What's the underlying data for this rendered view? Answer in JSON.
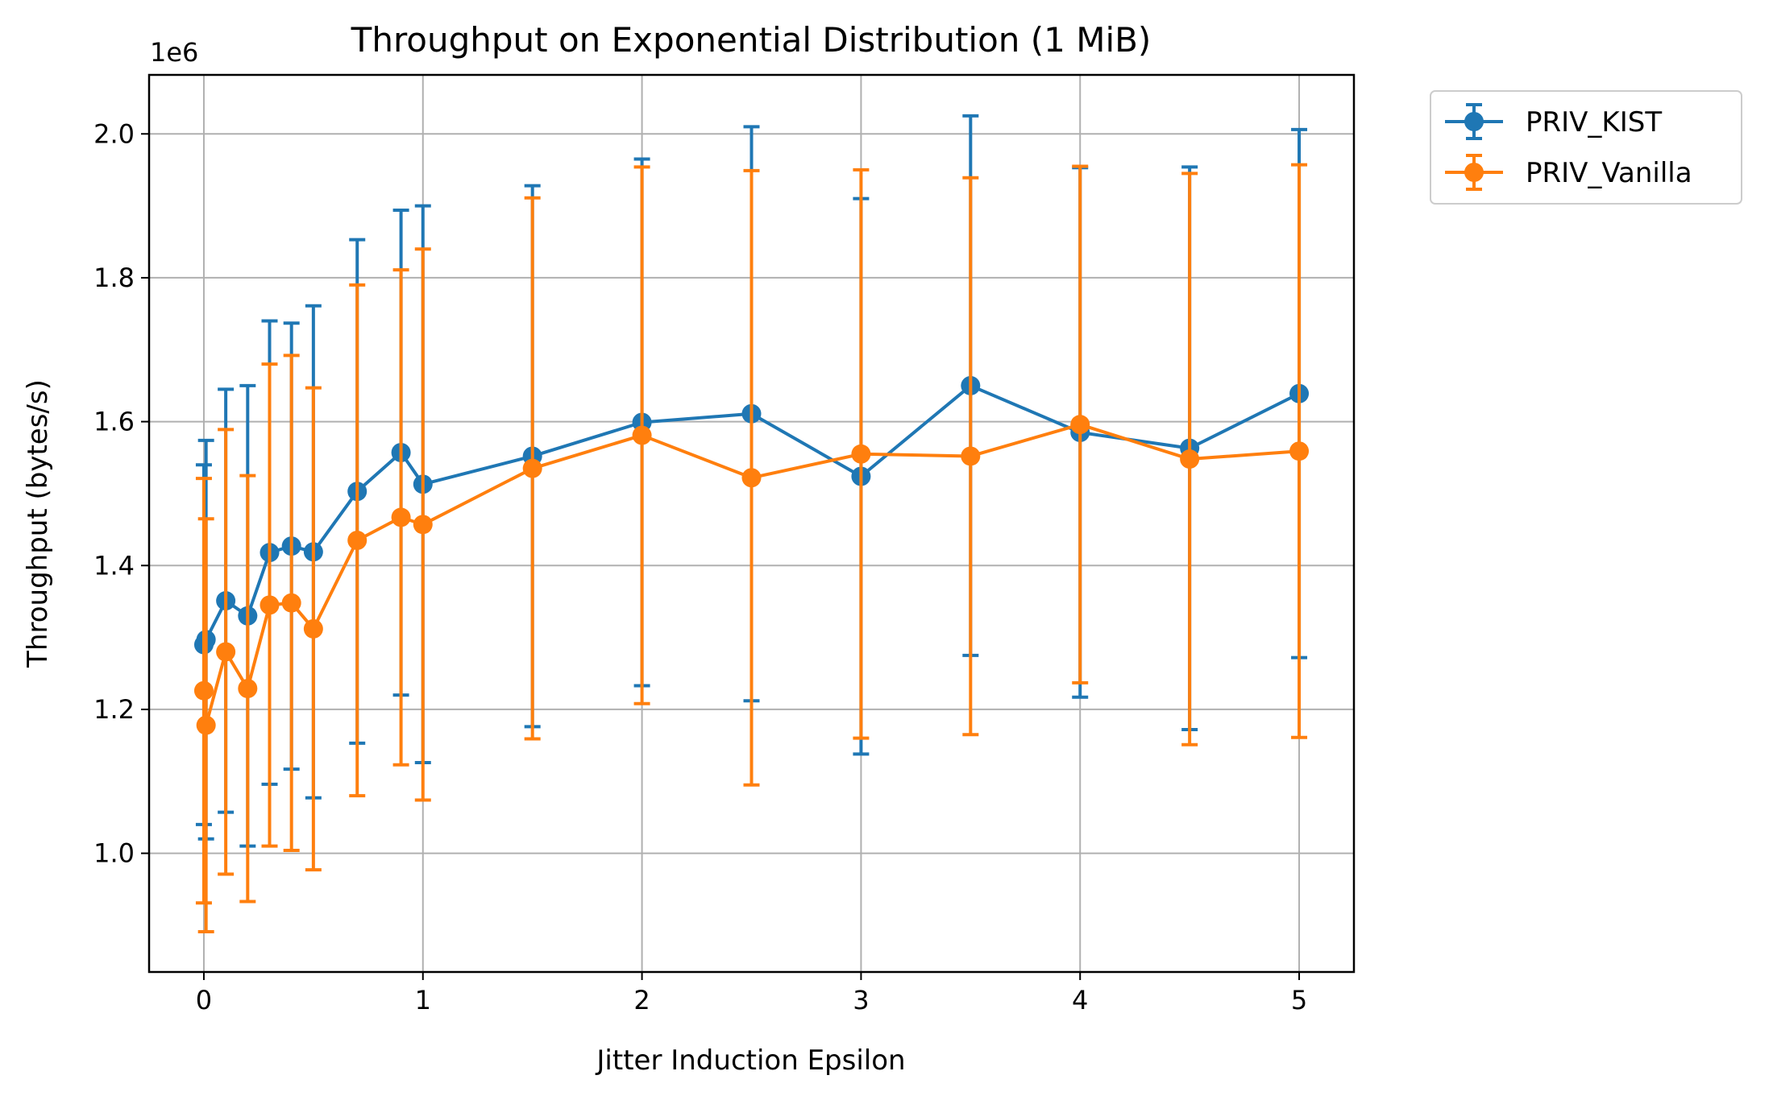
{
  "chart_data": {
    "type": "line",
    "title": "Throughput on Exponential Distribution (1 MiB)",
    "xlabel": "Jitter Induction Epsilon",
    "ylabel": "Throughput (bytes/s)",
    "y_offset_label": "1e6",
    "y_scale": 1000000,
    "xlim": [
      -0.25,
      5.25
    ],
    "ylim": [
      0.835,
      2.082
    ],
    "xticks": [
      0,
      1,
      2,
      3,
      4,
      5
    ],
    "yticks": [
      1.0,
      1.2,
      1.4,
      1.6,
      1.8,
      2.0
    ],
    "ytick_labels": [
      "1.0",
      "1.2",
      "1.4",
      "1.6",
      "1.8",
      "2.0"
    ],
    "grid": true,
    "legend_position": "outside-top-right",
    "x": [
      0,
      0.01,
      0.1,
      0.2,
      0.3,
      0.4,
      0.5,
      0.7,
      0.9,
      1,
      1.5,
      2,
      2.5,
      3,
      3.5,
      4,
      4.5,
      5
    ],
    "series": [
      {
        "name": "PRIV_KIST",
        "color": "#1f77b4",
        "values": [
          1.29,
          1.297,
          1.351,
          1.33,
          1.418,
          1.427,
          1.419,
          1.503,
          1.557,
          1.513,
          1.552,
          1.599,
          1.611,
          1.524,
          1.65,
          1.585,
          1.563,
          1.639
        ],
        "errors": [
          0.25,
          0.277,
          0.294,
          0.32,
          0.322,
          0.31,
          0.342,
          0.35,
          0.337,
          0.387,
          0.376,
          0.366,
          0.399,
          0.386,
          0.375,
          0.368,
          0.391,
          0.367
        ]
      },
      {
        "name": "PRIV_Vanilla",
        "color": "#ff7f0e",
        "values": [
          1.226,
          1.178,
          1.28,
          1.229,
          1.345,
          1.348,
          1.312,
          1.435,
          1.467,
          1.457,
          1.535,
          1.581,
          1.522,
          1.555,
          1.552,
          1.596,
          1.548,
          1.559
        ],
        "errors": [
          0.295,
          0.287,
          0.309,
          0.296,
          0.335,
          0.344,
          0.335,
          0.355,
          0.344,
          0.383,
          0.376,
          0.373,
          0.427,
          0.395,
          0.387,
          0.359,
          0.397,
          0.398
        ]
      }
    ]
  }
}
